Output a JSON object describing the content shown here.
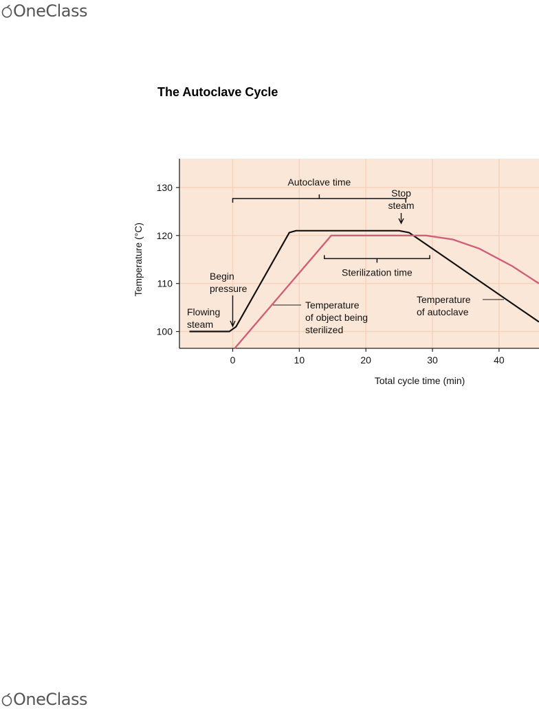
{
  "brand": {
    "name": "OneClass"
  },
  "document": {
    "title": "The Autoclave Cycle"
  },
  "chart_data": {
    "type": "line",
    "xlabel": "Total cycle time (min)",
    "ylabel": "Temperature (°C)",
    "xlim": [
      -8,
      46
    ],
    "ylim": [
      96.5,
      136
    ],
    "x_ticks": [
      0,
      10,
      20,
      30,
      40
    ],
    "y_ticks": [
      100,
      110,
      120,
      130
    ],
    "grid": true,
    "background_color": "#fbe7d8",
    "grid_color": "#f7d2bb",
    "series": [
      {
        "name": "Temperature of autoclave",
        "color": "#111111",
        "points": [
          [
            -6.5,
            100
          ],
          [
            -0.5,
            100
          ],
          [
            0.5,
            101
          ],
          [
            8.5,
            120.6
          ],
          [
            9.5,
            121
          ],
          [
            25,
            121
          ],
          [
            26.5,
            120.6
          ],
          [
            46,
            102
          ]
        ]
      },
      {
        "name": "Temperature of object being sterilized",
        "color": "#cf5f78",
        "points": [
          [
            0.3,
            96.5
          ],
          [
            14.8,
            120
          ],
          [
            29,
            120
          ],
          [
            33,
            119.2
          ],
          [
            37,
            117.3
          ],
          [
            42,
            113.6
          ],
          [
            46,
            110
          ]
        ]
      }
    ],
    "annotations": [
      {
        "id": "autoclave_time",
        "label": "Autoclave time",
        "span": [
          0,
          26
        ]
      },
      {
        "id": "sterilization_time",
        "label": "Sterilization time",
        "span": [
          15,
          30
        ]
      },
      {
        "id": "stop_steam",
        "lines": [
          "Stop",
          "steam"
        ]
      },
      {
        "id": "begin_pressure",
        "lines": [
          "Begin",
          "pressure"
        ]
      },
      {
        "id": "flowing_steam",
        "lines": [
          "Flowing",
          "steam"
        ]
      },
      {
        "id": "object_label",
        "lines": [
          "Temperature",
          "of object being",
          "sterilized"
        ]
      },
      {
        "id": "autoclave_label",
        "lines": [
          "Temperature",
          "of autoclave"
        ]
      }
    ]
  }
}
